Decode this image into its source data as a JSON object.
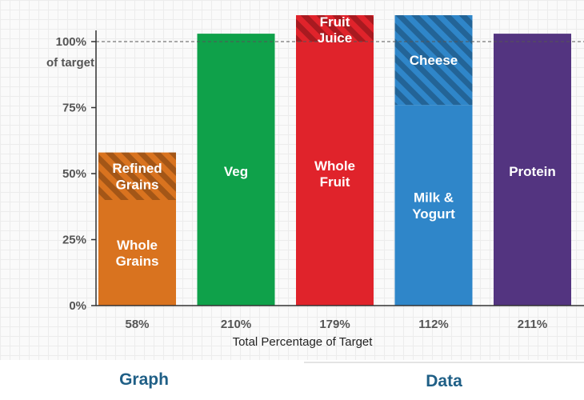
{
  "chart_data": {
    "type": "bar",
    "stacked": true,
    "ylim": [
      0,
      110
    ],
    "xlabel": "Total Percentage of Target",
    "y_ticks": [
      {
        "value": 0,
        "lines": [
          "0%"
        ]
      },
      {
        "value": 25,
        "lines": [
          "25%"
        ]
      },
      {
        "value": 50,
        "lines": [
          "50%"
        ]
      },
      {
        "value": 75,
        "lines": [
          "75%"
        ]
      },
      {
        "value": 100,
        "lines": [
          "100%",
          "of target"
        ]
      }
    ],
    "target_line": 100,
    "categories": [
      "58%",
      "210%",
      "179%",
      "112%",
      "211%"
    ],
    "bars": [
      {
        "total_label": "58%",
        "segments": [
          {
            "label": "Whole Grains",
            "value": 40,
            "color": "#d9731f",
            "hatched": false
          },
          {
            "label": "Refined Grains",
            "value": 18,
            "color": "#d9731f",
            "hatched": true
          }
        ]
      },
      {
        "total_label": "210%",
        "segments": [
          {
            "label": "Veg",
            "value": 103,
            "color": "#0fa14a",
            "hatched": false
          }
        ]
      },
      {
        "total_label": "179%",
        "segments": [
          {
            "label": "Whole Fruit",
            "value": 100,
            "color": "#e0232b",
            "hatched": false
          },
          {
            "label": "Fruit Juice",
            "value": 10,
            "color": "#e0232b",
            "hatched": true
          }
        ]
      },
      {
        "total_label": "112%",
        "segments": [
          {
            "label": "Milk & Yogurt",
            "value": 76,
            "color": "#2f86c9",
            "hatched": false
          },
          {
            "label": "Cheese",
            "value": 34,
            "color": "#2f86c9",
            "hatched": true
          }
        ]
      },
      {
        "total_label": "211%",
        "segments": [
          {
            "label": "Protein",
            "value": 103,
            "color": "#533480",
            "hatched": false
          }
        ]
      }
    ]
  },
  "tabs": {
    "graph": "Graph",
    "data": "Data"
  }
}
